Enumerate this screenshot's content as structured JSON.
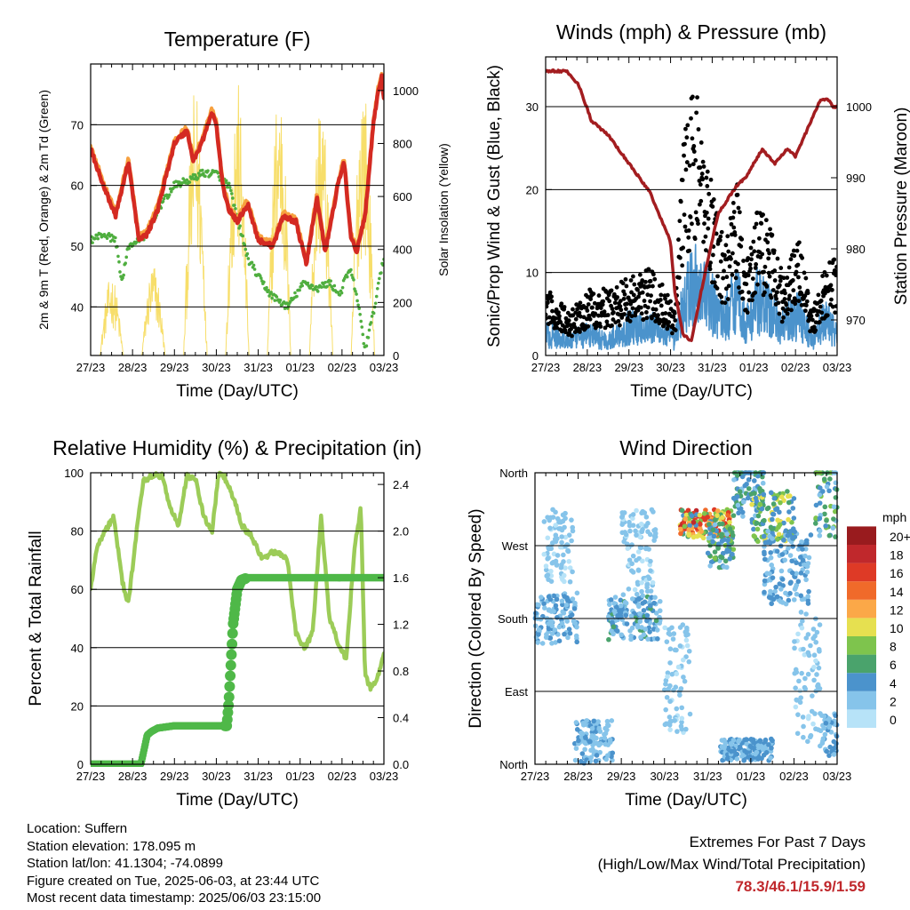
{
  "time_ticks": [
    "27/23",
    "28/23",
    "29/23",
    "30/23",
    "31/23",
    "01/23",
    "02/23",
    "03/23"
  ],
  "panels": {
    "temperature": {
      "title": "Temperature (F)",
      "xlabel": "Time (Day/UTC)",
      "ylabel_left": "2m & 9m T (Red, Orange) & 2m Td (Green)",
      "ylabel_right": "Solar Insolation (Yellow)",
      "left_ticks": [
        "40",
        "50",
        "60",
        "70"
      ],
      "right_ticks": [
        "0",
        "200",
        "400",
        "600",
        "800",
        "1000"
      ]
    },
    "winds": {
      "title": "Winds (mph) & Pressure (mb)",
      "xlabel": "Time (Day/UTC)",
      "ylabel_left": "Sonic/Prop Wind & Gust (Blue, Black)",
      "ylabel_right": "Station Pressure (Maroon)",
      "left_ticks": [
        "0",
        "10",
        "20",
        "30"
      ],
      "right_ticks": [
        "970",
        "980",
        "990",
        "1000"
      ]
    },
    "humidity": {
      "title": "Relative Humidity (%) & Precipitation (in)",
      "xlabel": "Time (Day/UTC)",
      "ylabel_left": "Percent & Total Rainfall",
      "left_ticks": [
        "0",
        "20",
        "40",
        "60",
        "80",
        "100"
      ],
      "right_ticks": [
        "0.0",
        "0.4",
        "0.8",
        "1.2",
        "1.6",
        "2.0",
        "2.4"
      ]
    },
    "direction": {
      "title": "Wind Direction",
      "xlabel": "Time (Day/UTC)",
      "ylabel_left": "Direction (Colored By Speed)",
      "left_ticks": [
        "North",
        "East",
        "South",
        "West",
        "North"
      ],
      "colorbar_title": "mph",
      "colorbar_labels": [
        "0",
        "2",
        "4",
        "6",
        "8",
        "10",
        "12",
        "14",
        "16",
        "18",
        "20+"
      ],
      "colorbar_colors": [
        "#b7e3f8",
        "#86c4ea",
        "#4b93cc",
        "#4aa36c",
        "#7ec44d",
        "#e6e050",
        "#fba848",
        "#f06a2a",
        "#de3a26",
        "#c0282c",
        "#991b1e"
      ]
    }
  },
  "colors": {
    "temp_2m": "#d42a22",
    "temp_9m": "#f7a13f",
    "dewpoint": "#4fae3f",
    "solar": "#f7de6a",
    "wind": "#4b93cc",
    "gust": "#000000",
    "pressure": "#a31d20",
    "rh": "#9ccc58",
    "precip": "#4fb848"
  },
  "chart_data": [
    {
      "type": "line",
      "title": "Temperature (F)",
      "xlabel": "Time (Day/UTC)",
      "x_range": [
        "27/23",
        "03/23"
      ],
      "ylim": [
        32,
        80
      ],
      "y2lim": [
        0,
        1100
      ],
      "series": [
        {
          "name": "2m T",
          "axis": "left",
          "t": [
            0,
            0.3,
            0.6,
            0.9,
            1.15,
            1.35,
            1.6,
            2.0,
            2.3,
            2.45,
            2.65,
            2.9,
            3.0,
            3.15,
            3.3,
            3.5,
            3.75,
            4.0,
            4.35,
            4.6,
            4.9,
            5.15,
            5.4,
            5.6,
            5.9,
            6.05,
            6.2,
            6.35,
            6.55,
            6.75,
            6.85,
            6.95,
            7.0
          ],
          "values": [
            66,
            60,
            55,
            64,
            51,
            52,
            56,
            67,
            69,
            64,
            67,
            72,
            70,
            60,
            56,
            54,
            57,
            51,
            50,
            55,
            54,
            47,
            58,
            49,
            60,
            64,
            52,
            49,
            55,
            70,
            75,
            78,
            74
          ]
        },
        {
          "name": "2m Td",
          "axis": "left",
          "t": [
            0,
            0.3,
            0.6,
            0.75,
            0.9,
            1.15,
            1.35,
            1.6,
            2.0,
            2.4,
            2.65,
            3.0,
            3.3,
            3.6,
            3.75,
            4.0,
            4.3,
            4.5,
            4.7,
            5.1,
            5.4,
            5.7,
            5.95,
            6.1,
            6.2,
            6.35,
            6.55,
            6.75,
            6.85,
            7.0
          ],
          "values": [
            51,
            52,
            51,
            44,
            50,
            51,
            52,
            56,
            60,
            61,
            62,
            62,
            60,
            52,
            48,
            45,
            42,
            41,
            40,
            44,
            43,
            44,
            42,
            45,
            46,
            42,
            33,
            39,
            43,
            48
          ]
        },
        {
          "name": "Solar Insolation",
          "axis": "right",
          "peaks_t": [
            0.5,
            1.5,
            2.5,
            3.5,
            4.5,
            5.5,
            6.5
          ],
          "peak_values": [
            300,
            350,
            1020,
            1040,
            1050,
            1000,
            1060
          ]
        }
      ]
    },
    {
      "type": "line",
      "title": "Winds (mph) & Pressure (mb)",
      "xlabel": "Time (Day/UTC)",
      "ylim": [
        0,
        36
      ],
      "y2lim": [
        965,
        1007
      ],
      "series": [
        {
          "name": "Station Pressure",
          "axis": "right",
          "t": [
            0,
            0.2,
            0.5,
            0.8,
            1.1,
            1.5,
            2.0,
            2.5,
            3.0,
            3.1,
            3.3,
            3.5,
            3.7,
            3.95,
            4.15,
            4.6,
            4.8,
            5.2,
            5.5,
            5.8,
            6.0,
            6.3,
            6.6,
            6.8,
            6.9,
            7.0
          ],
          "values": [
            1005,
            1005,
            1005,
            1003,
            998,
            996,
            992,
            988,
            981,
            974,
            968,
            967,
            973,
            980,
            985,
            989,
            990,
            994,
            992,
            994,
            993,
            997,
            1001,
            1001,
            1000,
            1000
          ]
        },
        {
          "name": "Wind",
          "axis": "left",
          "t": [
            0,
            0.6,
            1.0,
            1.5,
            2.0,
            2.5,
            2.9,
            3.1,
            3.35,
            3.6,
            3.9,
            4.3,
            4.6,
            4.8,
            5.1,
            5.4,
            5.7,
            6.1,
            6.4,
            6.7,
            7.0
          ],
          "values": [
            3,
            2,
            3,
            2,
            4,
            4,
            3,
            2,
            8,
            10,
            8,
            5,
            9,
            4,
            8,
            6,
            4,
            6,
            2,
            5,
            3
          ]
        },
        {
          "name": "Gust",
          "axis": "left",
          "t": [
            0,
            0.6,
            1.0,
            1.5,
            2.0,
            2.5,
            2.9,
            3.1,
            3.35,
            3.6,
            3.9,
            4.3,
            4.6,
            4.8,
            5.1,
            5.4,
            5.7,
            6.1,
            6.4,
            6.7,
            7.0
          ],
          "values": [
            6,
            4,
            6,
            6,
            7,
            8,
            6,
            4,
            22,
            24,
            18,
            10,
            16,
            8,
            14,
            12,
            7,
            11,
            4,
            8,
            9
          ]
        }
      ]
    },
    {
      "type": "line",
      "title": "Relative Humidity (%) & Precipitation (in)",
      "xlabel": "Time (Day/UTC)",
      "ylim": [
        0,
        100
      ],
      "y2lim": [
        0,
        2.5
      ],
      "series": [
        {
          "name": "Relative Humidity",
          "axis": "left",
          "t": [
            0,
            0.15,
            0.35,
            0.55,
            0.75,
            0.9,
            1.1,
            1.25,
            1.45,
            1.7,
            1.9,
            2.1,
            2.3,
            2.5,
            2.7,
            2.9,
            3.05,
            3.15,
            3.4,
            3.6,
            3.85,
            4.1,
            4.3,
            4.5,
            4.7,
            4.9,
            5.1,
            5.3,
            5.5,
            5.7,
            5.9,
            6.1,
            6.3,
            6.45,
            6.55,
            6.7,
            6.85,
            7.0
          ],
          "values": [
            60,
            75,
            80,
            85,
            63,
            55,
            80,
            97,
            99,
            99,
            88,
            82,
            99,
            98,
            85,
            80,
            99,
            100,
            92,
            82,
            78,
            70,
            73,
            72,
            70,
            45,
            40,
            45,
            85,
            50,
            42,
            36,
            75,
            88,
            30,
            26,
            30,
            38
          ]
        },
        {
          "name": "Total Precipitation",
          "axis": "right",
          "t": [
            0,
            1.2,
            1.35,
            1.45,
            1.6,
            2.0,
            2.5,
            3.0,
            3.25,
            3.3,
            3.4,
            3.5,
            3.6,
            3.75,
            4.0,
            5.0,
            6.0,
            7.0
          ],
          "values": [
            0,
            0,
            0.25,
            0.28,
            0.31,
            0.33,
            0.33,
            0.33,
            0.33,
            0.55,
            1.2,
            1.5,
            1.58,
            1.6,
            1.6,
            1.6,
            1.6,
            1.6
          ]
        }
      ]
    },
    {
      "type": "scatter",
      "title": "Wind Direction",
      "xlabel": "Time (Day/UTC)",
      "y_categories": [
        "North",
        "East",
        "South",
        "West",
        "North"
      ],
      "color_by": "speed (mph)",
      "colorbar_range": [
        0,
        20
      ]
    }
  ],
  "info": {
    "location": "Location: Suffern",
    "elevation": "Station elevation: 178.095 m",
    "latlon": "Station lat/lon: 41.1304; -74.0899",
    "created": "Figure created on Tue, 2025-06-03, at 23:44 UTC",
    "recent": "Most recent data timestamp: 2025/06/03 23:15:00"
  },
  "extremes": {
    "title": "Extremes For Past 7 Days",
    "subtitle": "(High/Low/Max Wind/Total Precipitation)",
    "values": "78.3/46.1/15.9/1.59"
  }
}
